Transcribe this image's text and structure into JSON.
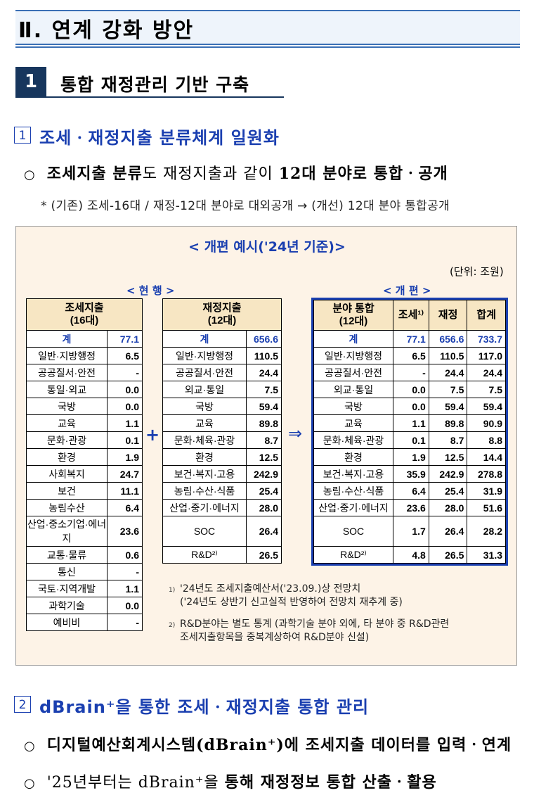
{
  "title": "Ⅱ. 연계 강화 방안",
  "section1": {
    "number": "1",
    "title": "통합 재정관리 기반 구축"
  },
  "sub1": {
    "number": "1",
    "title": "조세ㆍ재정지출 분류체계 일원화",
    "bullet_bold1": "조세지출 분류",
    "bullet_normal": "도 재정지출과 같이 ",
    "bullet_bold2": "12대 분야로 통합ㆍ공개",
    "note": "* (기존) 조세-16대 / 재정-12대 분야로 대외공개 → (개선) 12대 분야 통합공개"
  },
  "example": {
    "title": "< 개편 예시('24년 기준)>",
    "unit": "(단위: 조원)",
    "current_label": "< 현  행 >",
    "revised_label": "< 개  편 >",
    "plus": "+",
    "arrow": "⇒",
    "table1": {
      "header": "조세지출\n(16대)",
      "total_label": "계",
      "total": "77.1",
      "rows": [
        [
          "일반·지방행정",
          "6.5"
        ],
        [
          "공공질서·안전",
          "-"
        ],
        [
          "통일·외교",
          "0.0"
        ],
        [
          "국방",
          "0.0"
        ],
        [
          "교육",
          "1.1"
        ],
        [
          "문화·관광",
          "0.1"
        ],
        [
          "환경",
          "1.9"
        ],
        [
          "사회복지",
          "24.7"
        ],
        [
          "보건",
          "11.1"
        ],
        [
          "농림수산",
          "6.4"
        ],
        [
          "산업·중소기업·에너지",
          "23.6"
        ],
        [
          "교통·물류",
          "0.6"
        ],
        [
          "통신",
          "-"
        ],
        [
          "국토·지역개발",
          "1.1"
        ],
        [
          "과학기술",
          "0.0"
        ],
        [
          "예비비",
          "-"
        ]
      ]
    },
    "table2": {
      "header": "재정지출\n(12대)",
      "total_label": "계",
      "total": "656.6",
      "rows": [
        [
          "일반·지방행정",
          "110.5"
        ],
        [
          "공공질서·안전",
          "24.4"
        ],
        [
          "외교·통일",
          "7.5"
        ],
        [
          "국방",
          "59.4"
        ],
        [
          "교육",
          "89.8"
        ],
        [
          "문화·체육·관광",
          "8.7"
        ],
        [
          "환경",
          "12.5"
        ],
        [
          "보건·복지·고용",
          "242.9"
        ],
        [
          "농림·수산·식품",
          "25.4"
        ],
        [
          "산업·중기·에너지",
          "28.0"
        ],
        [
          "SOC",
          "26.4"
        ],
        [
          "R&D²⁾",
          "26.5"
        ]
      ]
    },
    "table3": {
      "headers": [
        "분야 통합\n(12대)",
        "조세¹⁾",
        "재정",
        "합계"
      ],
      "total": [
        "계",
        "77.1",
        "656.6",
        "733.7"
      ],
      "rows": [
        [
          "일반·지방행정",
          "6.5",
          "110.5",
          "117.0"
        ],
        [
          "공공질서·안전",
          "-",
          "24.4",
          "24.4"
        ],
        [
          "외교·통일",
          "0.0",
          "7.5",
          "7.5"
        ],
        [
          "국방",
          "0.0",
          "59.4",
          "59.4"
        ],
        [
          "교육",
          "1.1",
          "89.8",
          "90.9"
        ],
        [
          "문화·체육·관광",
          "0.1",
          "8.7",
          "8.8"
        ],
        [
          "환경",
          "1.9",
          "12.5",
          "14.4"
        ],
        [
          "보건·복지·고용",
          "35.9",
          "242.9",
          "278.8"
        ],
        [
          "농림·수산·식품",
          "6.4",
          "25.4",
          "31.9"
        ],
        [
          "산업·중기·에너지",
          "23.6",
          "28.0",
          "51.6"
        ],
        [
          "SOC",
          "1.7",
          "26.4",
          "28.2"
        ],
        [
          "R&D²⁾",
          "4.8",
          "26.5",
          "31.3"
        ]
      ]
    },
    "footnotes": [
      {
        "mark": "1)",
        "lines": [
          "'24년도 조세지출예산서('23.09.)상 전망치",
          "('24년도 상반기 신고실적 반영하여 전망치 재추계 중)"
        ]
      },
      {
        "mark": "2)",
        "lines": [
          "R&D분야는 별도 통계 (과학기술 분야 외에, 타 분야 중 R&D관련",
          "조세지출항목을 중복계상하여 R&D분야 신설)"
        ]
      }
    ]
  },
  "sub2": {
    "number": "2",
    "title": "dBrain⁺을 통한 조세ㆍ재정지출 통합 관리",
    "bullet1_a": "디지털예산회계시스템(dBrain⁺)에 ",
    "bullet1_b": "조세지출 데이터를 입력ㆍ연계",
    "bullet2_a": "'25년부터는 dBrain⁺을 ",
    "bullet2_b": "통해 재정정보 통합 산출ㆍ활용"
  }
}
